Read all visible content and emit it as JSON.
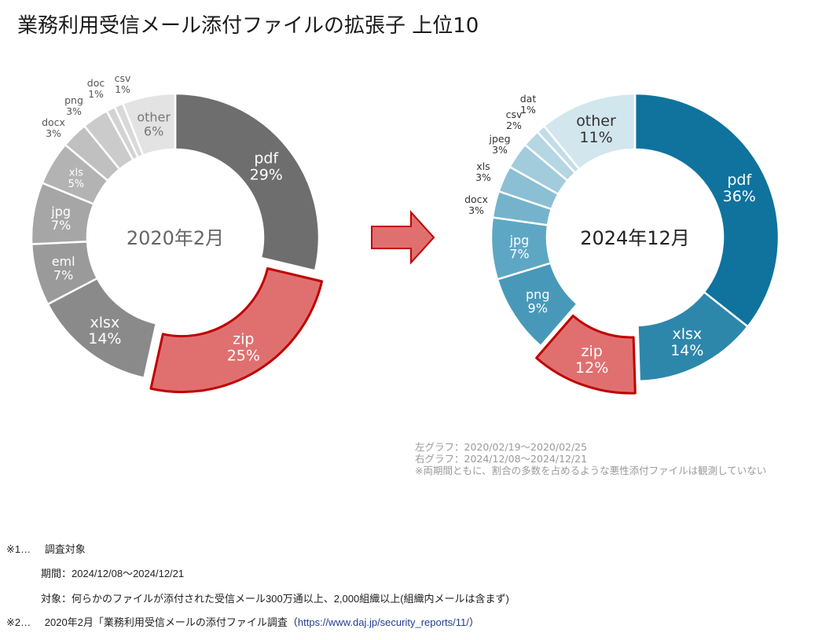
{
  "title": "業務利用受信メール添付ファイルの拡張子 上位10",
  "arrow_color": "#e07070",
  "highlight_stroke": "#c00000",
  "chart_data": [
    {
      "type": "pie",
      "variant": "donut",
      "center_label": "2020年2月",
      "highlight": "zip",
      "slices": [
        {
          "label": "pdf",
          "value": 29,
          "pct": "29%",
          "color": "#6e6e6e",
          "text": "#ffffff",
          "label_pos": "inside"
        },
        {
          "label": "zip",
          "value": 25,
          "pct": "25%",
          "color": "#e07070",
          "text": "#ffffff",
          "label_pos": "inside"
        },
        {
          "label": "xlsx",
          "value": 14,
          "pct": "14%",
          "color": "#8a8a8a",
          "text": "#ffffff",
          "label_pos": "inside"
        },
        {
          "label": "eml",
          "value": 7,
          "pct": "7%",
          "color": "#9a9a9a",
          "text": "#ffffff",
          "label_pos": "inside"
        },
        {
          "label": "jpg",
          "value": 7,
          "pct": "7%",
          "color": "#a6a6a6",
          "text": "#ffffff",
          "label_pos": "inside"
        },
        {
          "label": "xls",
          "value": 5,
          "pct": "5%",
          "color": "#b3b3b3",
          "text": "#ffffff",
          "label_pos": "inside"
        },
        {
          "label": "docx",
          "value": 3,
          "pct": "3%",
          "color": "#c0c0c0",
          "text": "#555555",
          "label_pos": "outside"
        },
        {
          "label": "png",
          "value": 3,
          "pct": "3%",
          "color": "#cbcbcb",
          "text": "#555555",
          "label_pos": "outside"
        },
        {
          "label": "doc",
          "value": 1,
          "pct": "1%",
          "color": "#d3d3d3",
          "text": "#555555",
          "label_pos": "outside"
        },
        {
          "label": "csv",
          "value": 1,
          "pct": "1%",
          "color": "#d9d9d9",
          "text": "#555555",
          "label_pos": "outside"
        },
        {
          "label": "other",
          "value": 6,
          "pct": "6%",
          "color": "#e3e3e3",
          "text": "#777777",
          "label_pos": "inside"
        }
      ]
    },
    {
      "type": "pie",
      "variant": "donut",
      "center_label": "2024年12月",
      "highlight": "zip",
      "slices": [
        {
          "label": "pdf",
          "value": 36,
          "pct": "36%",
          "color": "#0f739e",
          "text": "#ffffff",
          "label_pos": "inside"
        },
        {
          "label": "xlsx",
          "value": 14,
          "pct": "14%",
          "color": "#2d87ab",
          "text": "#ffffff",
          "label_pos": "inside"
        },
        {
          "label": "zip",
          "value": 12,
          "pct": "12%",
          "color": "#e07070",
          "text": "#ffffff",
          "label_pos": "inside"
        },
        {
          "label": "png",
          "value": 9,
          "pct": "9%",
          "color": "#4899b9",
          "text": "#ffffff",
          "label_pos": "inside"
        },
        {
          "label": "jpg",
          "value": 7,
          "pct": "7%",
          "color": "#5ea7c4",
          "text": "#ffffff",
          "label_pos": "inside"
        },
        {
          "label": "docx",
          "value": 3,
          "pct": "3%",
          "color": "#75b3cc",
          "text": "#333333",
          "label_pos": "outside"
        },
        {
          "label": "xls",
          "value": 3,
          "pct": "3%",
          "color": "#8bbfd4",
          "text": "#333333",
          "label_pos": "outside"
        },
        {
          "label": "jpeg",
          "value": 3,
          "pct": "3%",
          "color": "#a2cbdc",
          "text": "#333333",
          "label_pos": "outside"
        },
        {
          "label": "csv",
          "value": 2,
          "pct": "2%",
          "color": "#b5d6e3",
          "text": "#333333",
          "label_pos": "outside"
        },
        {
          "label": "dat",
          "value": 1,
          "pct": "1%",
          "color": "#c3dde8",
          "text": "#333333",
          "label_pos": "outside"
        },
        {
          "label": "other",
          "value": 11,
          "pct": "11%",
          "color": "#d2e6ee",
          "text": "#333333",
          "label_pos": "inside"
        }
      ]
    }
  ],
  "notes": [
    "左グラフ：2020/02/19～2020/02/25",
    "右グラフ：2024/12/08～2024/12/21",
    "※両期間ともに、割合の多数を占めるような悪性添付ファイルは観測していない"
  ],
  "footnotes": {
    "n1_marker": "※1…",
    "n1_title": "調査対象",
    "n1_period": "期間：2024/12/08～2024/12/21",
    "n1_target": "対象：何らかのファイルが添付された受信メール300万通以上、2,000組織以上(組織内メールは含まず)",
    "n2_marker": "※2…",
    "n2_text": "2020年2月「業務利用受信メールの添付ファイル調査（",
    "n2_link": "https://www.daj.jp/security_reports/11/",
    "n2_close": "）"
  }
}
